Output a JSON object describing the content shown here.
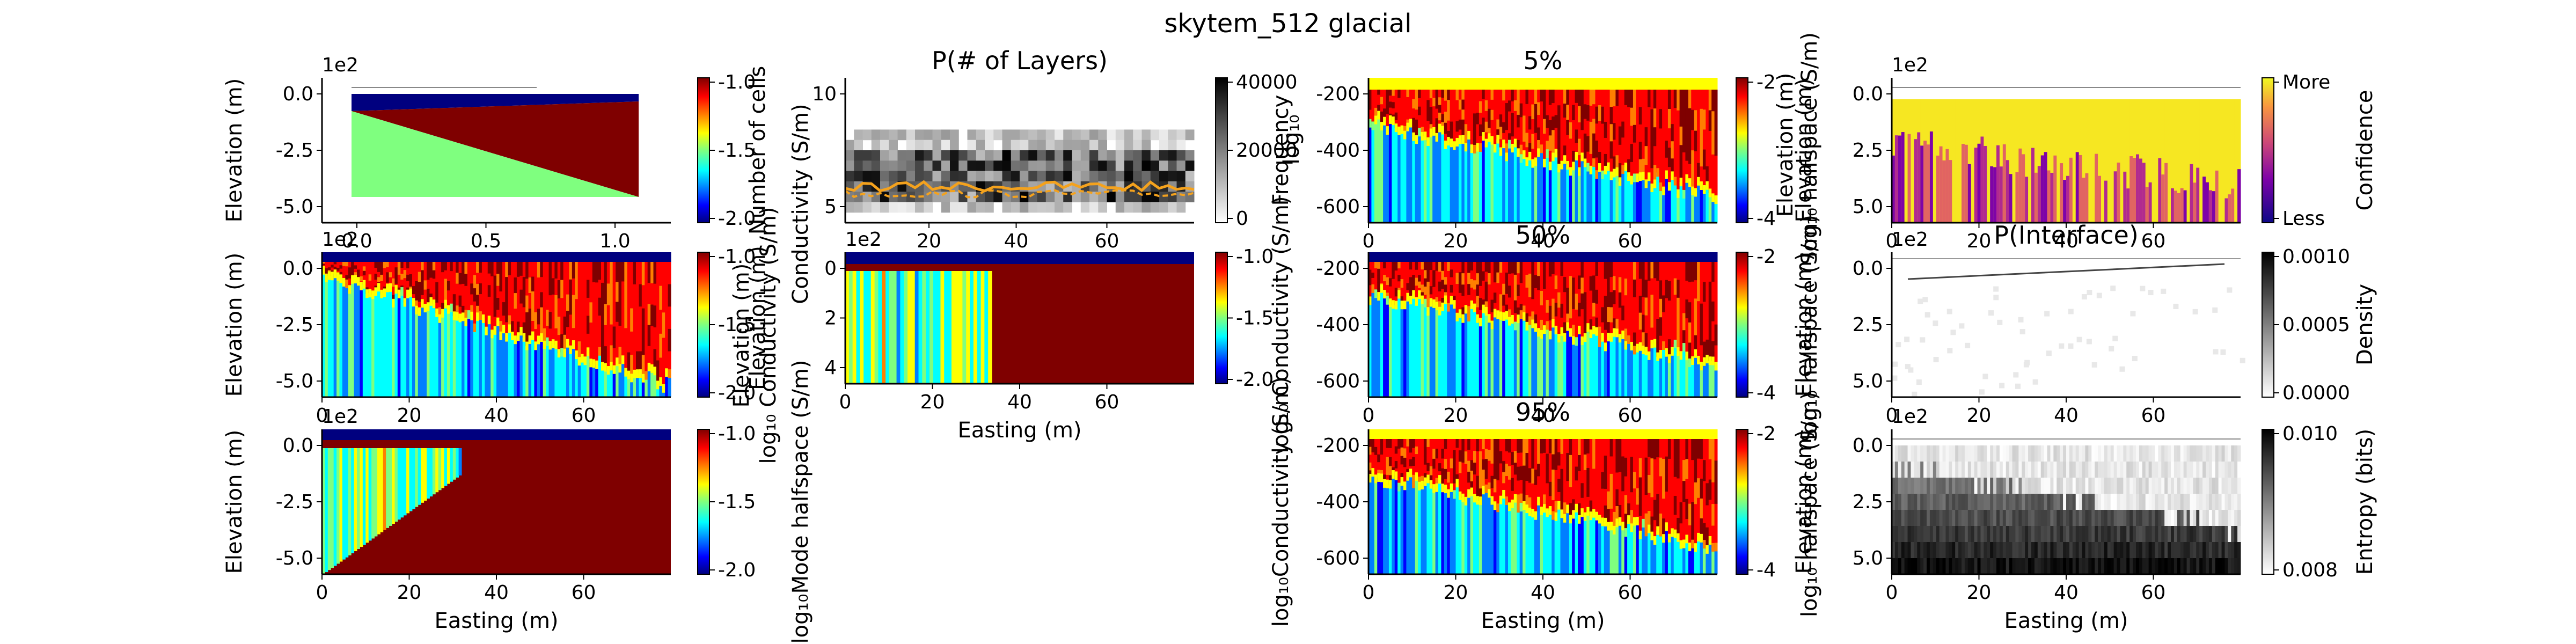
{
  "figure": {
    "suptitle": "skytem_512 glacial"
  },
  "colors": {
    "jet": [
      "#00007f",
      "#0000ff",
      "#007fff",
      "#00ffff",
      "#7fff7f",
      "#ffff00",
      "#ff7f00",
      "#ff0000",
      "#7f0000"
    ],
    "inferno": [
      "#000004",
      "#420a68",
      "#932667",
      "#dd513a",
      "#fca50a",
      "#fcffa4"
    ],
    "orange_line": "#f4a21d",
    "axis": "#000000"
  },
  "chart_data": [
    {
      "id": "p1",
      "type": "heatmap",
      "ylabel": "Elevation (m)",
      "exponent": "1e2",
      "xticks": [
        "0.0",
        "0.5",
        "1.0"
      ],
      "yticks": [
        "0.0",
        "-2.5",
        "-5.0"
      ],
      "colorbar": {
        "ticks": [
          "-1.0",
          "-1.5",
          "-2.0"
        ],
        "label": "",
        "cmap": "jet",
        "range": [
          -2.0,
          -1.0
        ]
      }
    },
    {
      "id": "p2",
      "type": "heatmap",
      "title": "P(# of Layers)",
      "ylabel": "Number of cells",
      "xticks": [
        "20",
        "40",
        "60"
      ],
      "yticks": [
        "10",
        "5"
      ],
      "colorbar": {
        "ticks": [
          "40000",
          "20000",
          "0"
        ],
        "label": "",
        "cmap": "gray_r",
        "range": [
          0,
          50000
        ]
      }
    },
    {
      "id": "p3",
      "type": "heatmap",
      "title": "5%",
      "ylabel": "Frequency",
      "xticks": [
        "0",
        "20",
        "40",
        "60"
      ],
      "yticks": [
        "-200",
        "-400",
        "-600"
      ],
      "colorbar": {
        "ticks": [
          "-2",
          "-4"
        ],
        "label": "",
        "cmap": "jet"
      }
    },
    {
      "id": "p4",
      "type": "heatmap",
      "ylabel": "Elevation (m)",
      "exponent": "1e2",
      "xticks": [
        "0",
        "20",
        "40",
        "60"
      ],
      "yticks": [
        "0.0",
        "2.5",
        "5.0"
      ],
      "colorbar": {
        "ticks": [
          "More",
          "Less"
        ],
        "label": "Confidence",
        "cmap": "plasma"
      }
    },
    {
      "id": "p5",
      "type": "heatmap",
      "ylabel": "Elevation (m)",
      "exponent": "1e2",
      "xticks": [
        "0",
        "20",
        "40",
        "60"
      ],
      "yticks": [
        "0.0",
        "-2.5",
        "-5.0"
      ],
      "colorbar": {
        "ticks": [
          "-1.0",
          "-1.5",
          "-2.0"
        ],
        "label": "",
        "cmap": "jet",
        "range": [
          -2.0,
          -1.0
        ]
      }
    },
    {
      "id": "p6",
      "type": "heatmap",
      "ylabel": "Elevation (m)",
      "exponent": "1e2",
      "xticks": [
        "0",
        "20",
        "40",
        "60"
      ],
      "yticks": [
        "0",
        "2",
        "4"
      ],
      "xlabel": "Easting (m)",
      "colorbar": {
        "ticks": [
          "-1.0",
          "-1.5",
          "-2.0"
        ],
        "label": "",
        "cmap": "jet",
        "range": [
          -2.0,
          -1.0
        ]
      }
    },
    {
      "id": "p7",
      "type": "heatmap",
      "title": "50%",
      "ylabel": "log₁₀ Conductivity (S/m)",
      "xticks": [
        "0",
        "20",
        "40",
        "60"
      ],
      "yticks": [
        "-200",
        "-400",
        "-600"
      ],
      "colorbar": {
        "ticks": [
          "-2",
          "-4"
        ],
        "label": "",
        "cmap": "jet"
      }
    },
    {
      "id": "p8",
      "type": "heatmap",
      "title": "P(Interface)",
      "ylabel": "Elevation (m)",
      "exponent": "1e2",
      "xticks": [
        "0",
        "20",
        "40",
        "60"
      ],
      "yticks": [
        "0.0",
        "2.5",
        "5.0"
      ],
      "colorbar": {
        "ticks": [
          "0.0010",
          "0.0005",
          "0.0000"
        ],
        "label": "Density",
        "cmap": "gray_r"
      }
    },
    {
      "id": "p9",
      "type": "heatmap",
      "ylabel": "Elevation (m)",
      "exponent": "1e2",
      "xlabel": "Easting (m)",
      "xticks": [
        "0",
        "20",
        "40",
        "60"
      ],
      "yticks": [
        "0.0",
        "-2.5",
        "-5.0"
      ],
      "colorbar": {
        "ticks": [
          "-1.0",
          "-1.5",
          "-2.0"
        ],
        "label": "log₁₀Mode halfspace (S/m)",
        "cmap": "jet",
        "range": [
          -2.0,
          -1.0
        ]
      }
    },
    {
      "id": "p10",
      "type": "heatmap",
      "title": "95%",
      "ylabel": "log₁₀Conductivity (S/m)",
      "xlabel": "Easting (m)",
      "xticks": [
        "0",
        "20",
        "40",
        "60"
      ],
      "yticks": [
        "-200",
        "-400",
        "-600"
      ],
      "colorbar": {
        "ticks": [
          "-2",
          "-4"
        ],
        "label": "",
        "cmap": "jet"
      }
    },
    {
      "id": "p11",
      "type": "heatmap",
      "ylabel": "Elevation (m)",
      "exponent": "1e2",
      "xlabel": "Easting (m)",
      "xticks": [
        "0",
        "20",
        "40",
        "60"
      ],
      "yticks": [
        "0.0",
        "2.5",
        "5.0"
      ],
      "colorbar": {
        "ticks": [
          "0.010",
          "0.008"
        ],
        "label": "Entropy (bits)",
        "cmap": "gray_r"
      }
    }
  ],
  "overlay_labels": {
    "p2_left_1": "Conductivity (S/m)",
    "p3_left_2": "log₁₀",
    "p4_left_1": "Elevation (m)",
    "p4_left_2": "log₁₀ halfspace (S/m)",
    "p5_right_1": "Elevation (m)",
    "p5_right_2": "log₁₀ Conductivity (S/m)",
    "p8_left_2": "log₁₀ halfspace (S/m)",
    "p11_left_2": "log₁₀ halfspace (S/m)"
  }
}
